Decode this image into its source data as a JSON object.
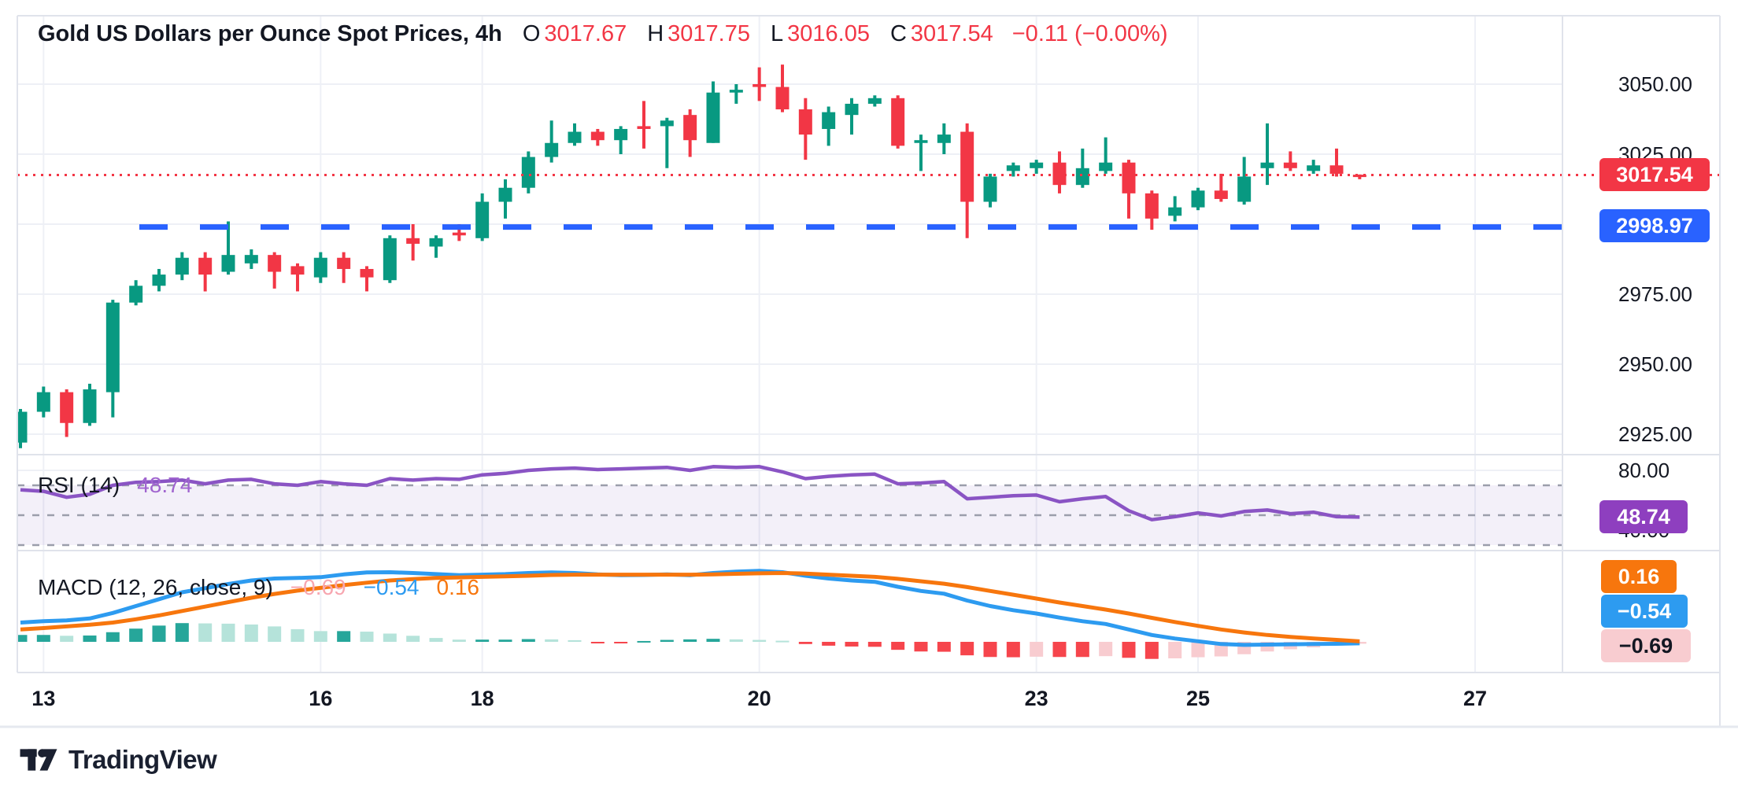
{
  "colors": {
    "up": "#089981",
    "down": "#f23645",
    "support": "#2962ff",
    "rsi_line": "#8a54c4",
    "rsi_value_text": "#a064cf",
    "rsi_badge": "#8e3fbf",
    "macd_line": "#2d9bf0",
    "signal_line": "#f7760d",
    "hist_pos_strong": "#26a69a",
    "hist_pos_weak": "#b5e3da",
    "hist_neg_strong": "#f6454c",
    "hist_neg_weak": "#f8ccd0",
    "grid": "#eef0f6",
    "border": "#e0e3eb",
    "level_dash": "#9b9eab",
    "rsi_band_fill": "rgba(126,87,194,0.09)",
    "text": "#131722"
  },
  "header": {
    "open_label": "O",
    "open_value": "3017.67",
    "high_label": "H",
    "high_value": "3017.75",
    "low_label": "L",
    "low_value": "3016.05",
    "close_label": "C",
    "close_value": "3017.54",
    "change_text": "−0.11 (−0.00%)"
  },
  "price_axis": {
    "ticks": [
      {
        "label": "3050.00",
        "value": 3050
      },
      {
        "label": "3025.00",
        "value": 3025
      },
      {
        "label": "3000.00",
        "value": 3000
      },
      {
        "label": "2975.00",
        "value": 2975
      },
      {
        "label": "2950.00",
        "value": 2950
      },
      {
        "label": "2925.00",
        "value": 2925
      }
    ],
    "last_price_badge": "3017.54",
    "support_badge": "2998.97"
  },
  "rsi_panel": {
    "name": "RSI (14)",
    "value_text": "48.74",
    "badge": "48.74",
    "axis_labels": [
      {
        "label": "80.00",
        "value": 80
      },
      {
        "label": "40.00",
        "value": 40
      }
    ]
  },
  "macd_panel": {
    "name": "MACD (12, 26, close, 9)",
    "hist_text": "−0.69",
    "macd_text": "−0.54",
    "signal_text": "0.16",
    "badge_signal": "0.16",
    "badge_macd": "−0.54",
    "badge_hist": "−0.69"
  },
  "time_axis": {
    "ticks": [
      {
        "label": "13",
        "index": 1
      },
      {
        "label": "16",
        "index": 13
      },
      {
        "label": "18",
        "index": 20
      },
      {
        "label": "20",
        "index": 32
      },
      {
        "label": "23",
        "index": 44
      },
      {
        "label": "25",
        "index": 51
      },
      {
        "label": "27",
        "index": 63
      }
    ]
  },
  "footer": {
    "brand": "TradingView"
  },
  "chart_data": {
    "type": "candlestick",
    "title": "Gold US Dollars per Ounce Spot Prices, 4h",
    "interval": "4h",
    "price_axis_range": [
      2918,
      3074.5
    ],
    "horizontal_lines": [
      {
        "role": "last-price",
        "style": "dotted",
        "price": 3017.54
      },
      {
        "role": "support",
        "style": "dashed",
        "price": 2998.97
      }
    ],
    "candles": [
      [
        2922,
        2934,
        2920,
        2933
      ],
      [
        2933,
        2942,
        2931,
        2940
      ],
      [
        2940,
        2941,
        2924,
        2929
      ],
      [
        2929,
        2943,
        2928,
        2941
      ],
      [
        2940,
        2973,
        2931,
        2972
      ],
      [
        2972,
        2980,
        2971,
        2978
      ],
      [
        2978,
        2984,
        2976,
        2982
      ],
      [
        2982,
        2990,
        2980,
        2988
      ],
      [
        2988,
        2990,
        2976,
        2982
      ],
      [
        2983,
        3001,
        2982,
        2989
      ],
      [
        2986,
        2991,
        2984,
        2989
      ],
      [
        2989,
        2990,
        2977,
        2983
      ],
      [
        2985,
        2986,
        2976,
        2982
      ],
      [
        2981,
        2990,
        2979,
        2988
      ],
      [
        2988,
        2990,
        2979,
        2984
      ],
      [
        2984,
        2985,
        2976,
        2981
      ],
      [
        2980,
        2996,
        2979,
        2995
      ],
      [
        2995,
        3000,
        2987,
        2993
      ],
      [
        2992,
        2996,
        2988,
        2995
      ],
      [
        2997,
        3000,
        2994,
        2996
      ],
      [
        2995,
        3011,
        2994,
        3008
      ],
      [
        3008,
        3016,
        3002,
        3013
      ],
      [
        3013,
        3026,
        3011,
        3024
      ],
      [
        3024,
        3037,
        3022,
        3029
      ],
      [
        3029,
        3036,
        3028,
        3033
      ],
      [
        3033,
        3034,
        3028,
        3030
      ],
      [
        3030,
        3035,
        3025,
        3034
      ],
      [
        3035,
        3044,
        3027,
        3034
      ],
      [
        3035,
        3038,
        3020,
        3037
      ],
      [
        3039,
        3041,
        3024,
        3030
      ],
      [
        3029,
        3051,
        3029,
        3047
      ],
      [
        3047,
        3050,
        3043,
        3048
      ],
      [
        3050,
        3056,
        3044,
        3049
      ],
      [
        3049,
        3057,
        3040,
        3041
      ],
      [
        3041,
        3045,
        3023,
        3032
      ],
      [
        3034,
        3042,
        3028,
        3040
      ],
      [
        3039,
        3045,
        3032,
        3043
      ],
      [
        3043,
        3046,
        3042,
        3045
      ],
      [
        3045,
        3046,
        3027,
        3028
      ],
      [
        3029,
        3032,
        3019,
        3030
      ],
      [
        3029,
        3036,
        3025,
        3032
      ],
      [
        3033,
        3036,
        2995,
        3008
      ],
      [
        3008,
        3018,
        3006,
        3017
      ],
      [
        3019,
        3022,
        3017,
        3021
      ],
      [
        3020,
        3023,
        3018,
        3022
      ],
      [
        3022,
        3026,
        3011,
        3014
      ],
      [
        3014,
        3027,
        3013,
        3020
      ],
      [
        3019,
        3031,
        3018,
        3022
      ],
      [
        3022,
        3023,
        3002,
        3011
      ],
      [
        3011,
        3012,
        2998,
        3002
      ],
      [
        3003,
        3010,
        3001,
        3006
      ],
      [
        3006,
        3013,
        3005,
        3012
      ],
      [
        3012,
        3018,
        3008,
        3009
      ],
      [
        3008,
        3024,
        3007,
        3017
      ],
      [
        3020,
        3036,
        3014,
        3022
      ],
      [
        3022,
        3026,
        3019,
        3020
      ],
      [
        3019,
        3023,
        3018,
        3021
      ],
      [
        3021,
        3027,
        3017,
        3018
      ],
      [
        3017.67,
        3017.75,
        3016.05,
        3017.54
      ]
    ],
    "rsi": {
      "period": 14,
      "last": 48.74,
      "overbought": 70,
      "middle": 50,
      "oversold": 30,
      "values": [
        67,
        66,
        62,
        64,
        70,
        72,
        72.5,
        73.5,
        71,
        73.5,
        74,
        71,
        70,
        72.5,
        71,
        70,
        74.5,
        73.5,
        74.5,
        74,
        77,
        78,
        80,
        81,
        81.5,
        80.5,
        81,
        81.5,
        82,
        80,
        82.5,
        82,
        82.5,
        79,
        74.5,
        76,
        77,
        77.5,
        71,
        71.5,
        72.5,
        61,
        62,
        63,
        63.5,
        59,
        61,
        62.5,
        53,
        47,
        49,
        51.5,
        49.5,
        52.5,
        53.5,
        51,
        52,
        49,
        48.74
      ]
    },
    "macd": {
      "params": "12, 26, close, 9",
      "macd_last": -0.54,
      "signal_last": 0.16,
      "hist_last": -0.69,
      "macd": [
        7,
        7.5,
        7.8,
        8.5,
        10.5,
        13,
        15.5,
        18,
        19.5,
        21,
        22.3,
        23,
        23.2,
        23.5,
        24.5,
        25.2,
        25.3,
        25,
        24.6,
        24.2,
        24.4,
        24.6,
        25,
        25.2,
        25,
        24.5,
        24.2,
        24.3,
        24.5,
        24.2,
        25,
        25.5,
        25.8,
        25.3,
        24,
        23,
        22.3,
        21.8,
        20,
        18.5,
        17.5,
        15,
        13,
        11.5,
        10.3,
        8.8,
        7.5,
        6.5,
        4.5,
        2.5,
        1.2,
        0.2,
        -0.8,
        -1.1,
        -1,
        -0.9,
        -0.8,
        -0.7,
        -0.54
      ],
      "signal": [
        4.5,
        5,
        5.6,
        6.2,
        7,
        8.2,
        9.6,
        11.2,
        12.8,
        14.4,
        16,
        17.4,
        18.6,
        19.6,
        20.6,
        21.5,
        22.3,
        22.8,
        23.2,
        23.4,
        23.6,
        23.8,
        24,
        24.3,
        24.4,
        24.4,
        24.4,
        24.4,
        24.4,
        24.4,
        24.5,
        24.7,
        24.9,
        25,
        24.8,
        24.4,
        24,
        23.6,
        22.9,
        22,
        21.1,
        19.9,
        18.5,
        17.1,
        15.7,
        14.3,
        13,
        11.7,
        10.3,
        8.7,
        7.2,
        5.8,
        4.5,
        3.4,
        2.5,
        1.8,
        1.2,
        0.7,
        0.16
      ],
      "hist": [
        2.5,
        2.5,
        2.2,
        2.3,
        3.5,
        4.8,
        5.9,
        6.8,
        6.7,
        6.6,
        6.3,
        5.6,
        4.6,
        3.9,
        3.9,
        3.7,
        3,
        2.2,
        1.4,
        0.8,
        0.8,
        0.8,
        1,
        0.9,
        0.6,
        -0.3,
        -0.4,
        0.3,
        0.7,
        0.9,
        1.1,
        0.9,
        0.7,
        0.4,
        -0.8,
        -1.4,
        -1.7,
        -1.8,
        -2.9,
        -3.5,
        -3.6,
        -4.9,
        -5.5,
        -5.6,
        -5.4,
        -5.5,
        -5.5,
        -5.2,
        -5.8,
        -6.2,
        -6,
        -5.6,
        -5.3,
        -4.5,
        -3.5,
        -2.7,
        -2,
        -1.35,
        -0.69
      ]
    }
  }
}
